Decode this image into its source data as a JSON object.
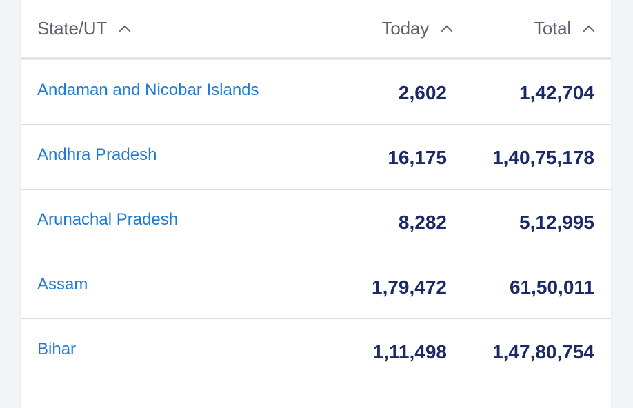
{
  "table": {
    "headers": {
      "state": "State/UT",
      "today": "Today",
      "total": "Total"
    },
    "rows": [
      {
        "state": "Andaman and Nicobar Islands",
        "today": "2,602",
        "total": "1,42,704"
      },
      {
        "state": "Andhra Pradesh",
        "today": "16,175",
        "total": "1,40,75,178"
      },
      {
        "state": "Arunachal Pradesh",
        "today": "8,282",
        "total": "5,12,995"
      },
      {
        "state": "Assam",
        "today": "1,79,472",
        "total": "61,50,011"
      },
      {
        "state": "Bihar",
        "today": "1,11,498",
        "total": "1,47,80,754"
      }
    ]
  },
  "icons": {
    "sort": "chevron-up-icon"
  },
  "colors": {
    "link": "#1e7ad6",
    "number": "#1b2a66",
    "header_text": "#5c6270",
    "divider": "#d9dce3"
  }
}
